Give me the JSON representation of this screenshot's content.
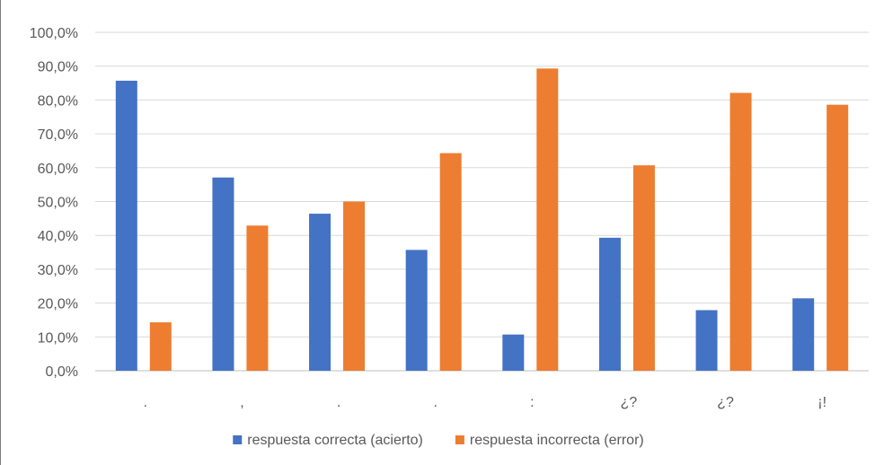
{
  "chart_data": {
    "type": "bar",
    "title": "",
    "xlabel": "",
    "ylabel": "",
    "categories": [
      ".",
      ",",
      ".",
      ".",
      ":",
      "¿?",
      "¿?",
      "¡!"
    ],
    "series": [
      {
        "name": "respuesta correcta (acierto)",
        "color": "#4472c4",
        "values": [
          85.7,
          57.1,
          46.4,
          35.7,
          10.7,
          39.3,
          17.9,
          21.4
        ]
      },
      {
        "name": "respuesta incorrecta (error)",
        "color": "#ed7d31",
        "values": [
          14.3,
          42.9,
          50.0,
          64.3,
          89.3,
          60.7,
          82.1,
          78.6
        ]
      }
    ],
    "ylim": [
      0,
      100
    ],
    "yticks": [
      0,
      10,
      20,
      30,
      40,
      50,
      60,
      70,
      80,
      90,
      100
    ],
    "ytick_labels": [
      "0,0%",
      "10,0%",
      "20,0%",
      "30,0%",
      "40,0%",
      "50,0%",
      "60,0%",
      "70,0%",
      "80,0%",
      "90,0%",
      "100,0%"
    ],
    "grid": true,
    "legend_position": "bottom"
  }
}
